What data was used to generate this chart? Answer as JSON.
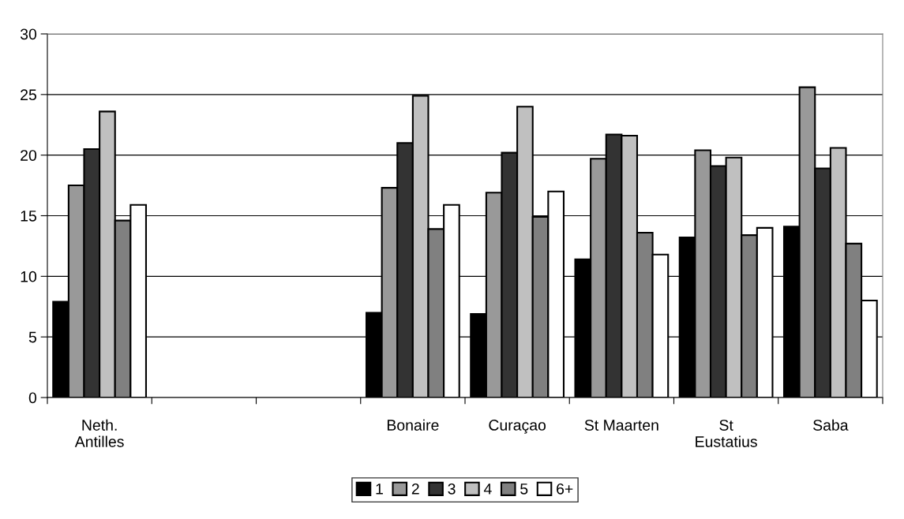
{
  "chart_data": {
    "type": "bar",
    "categories": [
      "Neth.\nAntilles",
      null,
      null,
      "Bonaire",
      "Curaçao",
      "St Maarten",
      "St\nEustatius",
      "Saba"
    ],
    "series": [
      {
        "name": "1",
        "color": "#000000",
        "values": [
          7.9,
          null,
          null,
          7.0,
          6.9,
          11.4,
          13.2,
          14.1
        ]
      },
      {
        "name": "2",
        "color": "#999999",
        "values": [
          17.5,
          null,
          null,
          17.3,
          16.9,
          19.7,
          20.4,
          25.6
        ]
      },
      {
        "name": "3",
        "color": "#333333",
        "values": [
          20.5,
          null,
          null,
          21.0,
          20.2,
          21.7,
          19.1,
          18.9
        ]
      },
      {
        "name": "4",
        "color": "#c0c0c0",
        "values": [
          23.6,
          null,
          null,
          24.9,
          24.0,
          21.6,
          19.8,
          20.6
        ]
      },
      {
        "name": "5",
        "color": "#808080",
        "values": [
          14.6,
          null,
          null,
          13.9,
          14.9,
          13.6,
          13.4,
          12.7
        ]
      },
      {
        "name": "6+",
        "color": "#ffffff",
        "values": [
          15.9,
          null,
          null,
          15.9,
          17.0,
          11.8,
          14.0,
          8.0
        ]
      }
    ],
    "ylim": [
      0,
      30
    ],
    "yticks": [
      0,
      5,
      10,
      15,
      20,
      25,
      30
    ],
    "grid": "y",
    "legend": "bottom"
  }
}
